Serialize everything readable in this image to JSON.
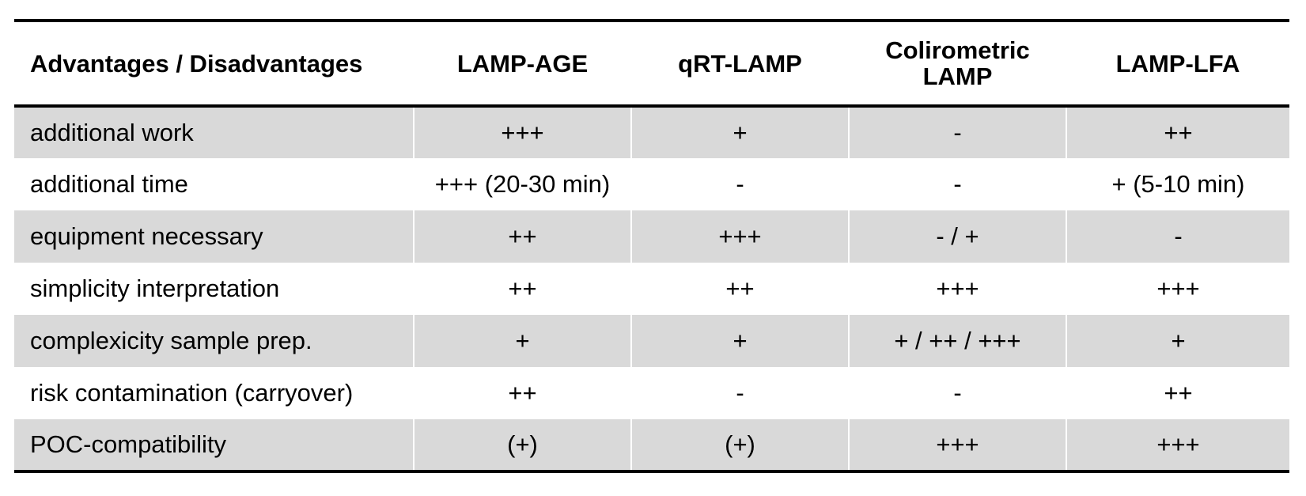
{
  "table": {
    "headers": [
      "Advantages / Disadvantages",
      "LAMP-AGE",
      "qRT-LAMP",
      "Colirometric\nLAMP",
      "LAMP-LFA"
    ],
    "rows": [
      [
        "additional work",
        "+++",
        "+",
        "-",
        "++"
      ],
      [
        "additional time",
        "+++ (20-30 min)",
        "-",
        "-",
        "+ (5-10 min)"
      ],
      [
        "equipment necessary",
        "++",
        "+++",
        "- / +",
        "-"
      ],
      [
        "simplicity interpretation",
        "++",
        "++",
        "+++",
        "+++"
      ],
      [
        "complexicity sample prep.",
        "+",
        "+",
        "+ / ++ / +++",
        "+"
      ],
      [
        "risk contamination (carryover)",
        "++",
        "-",
        "-",
        "++"
      ],
      [
        "POC-compatibility",
        "(+)",
        "(+)",
        "+++",
        "+++"
      ]
    ],
    "shaded_row_color": "#d9d9d9"
  }
}
